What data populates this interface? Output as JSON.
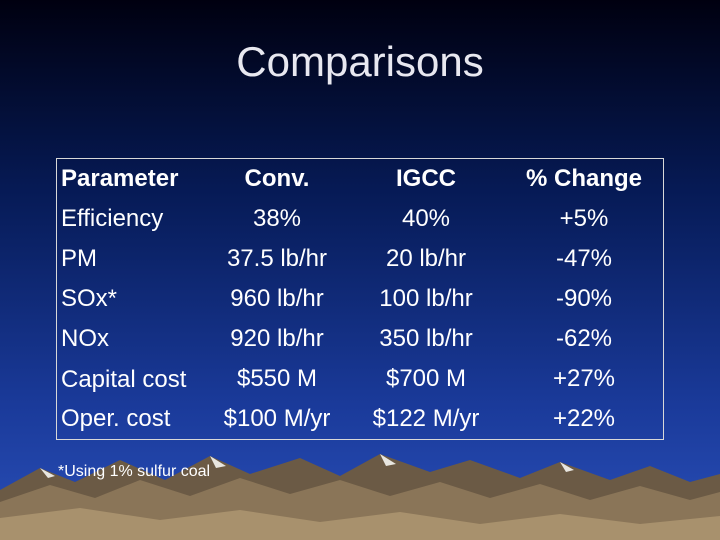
{
  "slide": {
    "title": "Comparisons",
    "footnote": "*Using 1% sulfur coal"
  },
  "table": {
    "headers": [
      "Parameter",
      "Conv.",
      "IGCC",
      "% Change"
    ],
    "rows": [
      [
        "Efficiency",
        "38%",
        "40%",
        "+5%"
      ],
      [
        "PM",
        "37.5 lb/hr",
        "20 lb/hr",
        "-47%"
      ],
      [
        "SOx*",
        "960 lb/hr",
        "100 lb/hr",
        "-90%"
      ],
      [
        "NOx",
        "920 lb/hr",
        "350 lb/hr",
        "-62%"
      ],
      [
        "Capital cost",
        "$550 M",
        "$700 M",
        "+27%"
      ],
      [
        "Oper. cost",
        "$100 M/yr",
        "$122 M/yr",
        "+22%"
      ]
    ]
  },
  "colors": {
    "background_top": "#000010",
    "background_bottom": "#2a4fb8",
    "text": "#ffffff"
  }
}
